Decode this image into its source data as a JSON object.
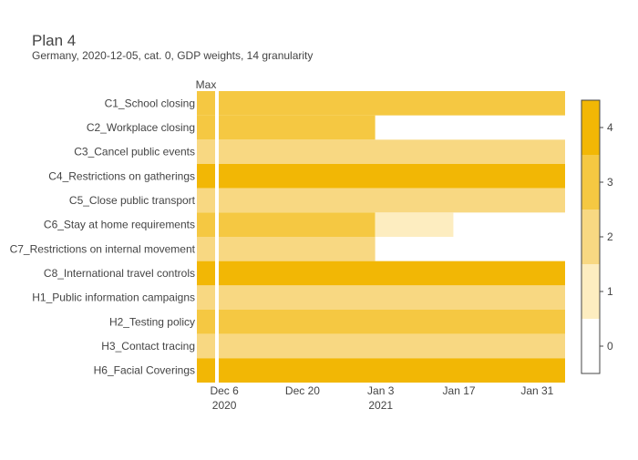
{
  "chart_data": {
    "type": "heatmap",
    "title": "Plan 4",
    "subtitle": "Germany, 2020-12-05, cat. 0, GDP weights, 14 granularity",
    "max_label": "Max",
    "x_start": "2020-12-05",
    "x_end": "2021-02-05",
    "x_ticks": [
      {
        "date": "2020-12-06",
        "label": "Dec 6",
        "year": "2020"
      },
      {
        "date": "2020-12-20",
        "label": "Dec 20",
        "year": ""
      },
      {
        "date": "2021-01-03",
        "label": "Jan 3",
        "year": "2021"
      },
      {
        "date": "2021-01-17",
        "label": "Jan 17",
        "year": ""
      },
      {
        "date": "2021-01-31",
        "label": "Jan 31",
        "year": ""
      }
    ],
    "rows": [
      {
        "name": "C1_School closing",
        "max": 3,
        "segments": [
          {
            "start": "2020-12-05",
            "end": "2021-02-05",
            "value": 3
          }
        ]
      },
      {
        "name": "C2_Workplace closing",
        "max": 3,
        "segments": [
          {
            "start": "2020-12-05",
            "end": "2021-01-02",
            "value": 3
          }
        ]
      },
      {
        "name": "C3_Cancel public events",
        "max": 2,
        "segments": [
          {
            "start": "2020-12-05",
            "end": "2021-02-05",
            "value": 2
          }
        ]
      },
      {
        "name": "C4_Restrictions on gatherings",
        "max": 4,
        "segments": [
          {
            "start": "2020-12-05",
            "end": "2021-02-05",
            "value": 4
          }
        ]
      },
      {
        "name": "C5_Close public transport",
        "max": 2,
        "segments": [
          {
            "start": "2020-12-05",
            "end": "2021-02-05",
            "value": 2
          }
        ]
      },
      {
        "name": "C6_Stay at home requirements",
        "max": 3,
        "segments": [
          {
            "start": "2020-12-05",
            "end": "2021-01-02",
            "value": 3
          },
          {
            "start": "2021-01-02",
            "end": "2021-01-16",
            "value": 1
          }
        ]
      },
      {
        "name": "C7_Restrictions on internal movement",
        "max": 2,
        "segments": [
          {
            "start": "2020-12-05",
            "end": "2021-01-02",
            "value": 2
          }
        ]
      },
      {
        "name": "C8_International travel controls",
        "max": 4,
        "segments": [
          {
            "start": "2020-12-05",
            "end": "2021-02-05",
            "value": 4
          }
        ]
      },
      {
        "name": "H1_Public information campaigns",
        "max": 2,
        "segments": [
          {
            "start": "2020-12-05",
            "end": "2021-02-05",
            "value": 2
          }
        ]
      },
      {
        "name": "H2_Testing policy",
        "max": 3,
        "segments": [
          {
            "start": "2020-12-05",
            "end": "2021-02-05",
            "value": 3
          }
        ]
      },
      {
        "name": "H3_Contact tracing",
        "max": 2,
        "segments": [
          {
            "start": "2020-12-05",
            "end": "2021-02-05",
            "value": 2
          }
        ]
      },
      {
        "name": "H6_Facial Coverings",
        "max": 4,
        "segments": [
          {
            "start": "2020-12-05",
            "end": "2021-02-05",
            "value": 4
          }
        ]
      }
    ],
    "colorscale": {
      "min": 0,
      "max": 4,
      "ticks": [
        0,
        1,
        2,
        3,
        4
      ],
      "colors": [
        "#ffffff",
        "#fdedc0",
        "#f8d882",
        "#f5c842",
        "#f2b705"
      ]
    },
    "grid": false,
    "legend": "right colorbar"
  }
}
